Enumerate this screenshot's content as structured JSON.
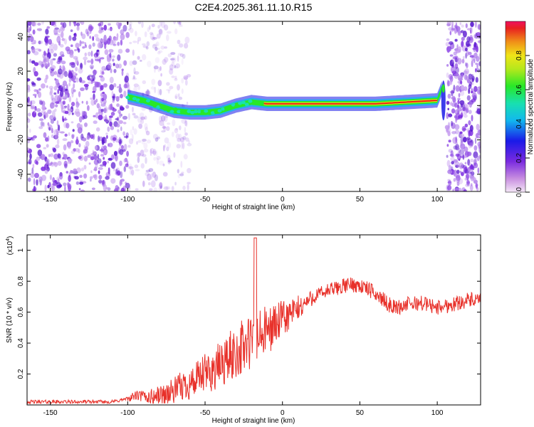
{
  "title": "C2E4.2025.361.11.10.R15",
  "chart_data": [
    {
      "type": "heatmap",
      "xlabel": "Height of straight line (km)",
      "ylabel": "Frequency (Hz)",
      "xlim": [
        -165,
        128
      ],
      "ylim": [
        -50,
        49
      ],
      "xticks": [
        -150,
        -100,
        -50,
        0,
        50,
        100
      ],
      "yticks": [
        -40,
        -20,
        0,
        20,
        40
      ],
      "colorbar": {
        "label": "Normalized spectral amplitude",
        "range": [
          0.0,
          1.0
        ],
        "ticks": [
          0.0,
          0.2,
          0.4,
          0.6,
          0.8
        ],
        "colormap": "rainbow (magenta-white to red)"
      },
      "ridge": {
        "x": [
          -100,
          -90,
          -80,
          -70,
          -60,
          -50,
          -40,
          -30,
          -20,
          -10,
          0,
          20,
          40,
          60,
          80,
          100,
          103
        ],
        "y": [
          5,
          3,
          0,
          -3,
          -4,
          -4,
          -3,
          0,
          2,
          1,
          1,
          1,
          1,
          1,
          2,
          3,
          10
        ]
      },
      "colors": {
        "noise": "#7a2ae0",
        "ridge_core": "#e8201a"
      }
    },
    {
      "type": "line",
      "xlabel": "Height of straight line (km)",
      "ylabel": "SNR (10 * v/v)",
      "y_multiplier": "(x10",
      "y_exponent": "4",
      "xlim": [
        -165,
        128
      ],
      "ylim": [
        0,
        1.1
      ],
      "xticks": [
        -150,
        -100,
        -50,
        0,
        50,
        100
      ],
      "yticks": [
        0.2,
        0.4,
        0.6,
        0.8,
        1.0
      ],
      "series": [
        {
          "color": "#e8312a",
          "x": [
            -165,
            -140,
            -110,
            -100,
            -95,
            -85,
            -75,
            -70,
            -65,
            -60,
            -55,
            -50,
            -45,
            -40,
            -35,
            -30,
            -25,
            -20,
            -18,
            -15,
            -10,
            -5,
            0,
            10,
            20,
            30,
            40,
            45,
            50,
            55,
            60,
            65,
            70,
            75,
            80,
            90,
            100,
            110,
            120,
            128
          ],
          "y": [
            0.02,
            0.02,
            0.02,
            0.04,
            0.06,
            0.05,
            0.07,
            0.09,
            0.12,
            0.14,
            0.16,
            0.2,
            0.22,
            0.26,
            0.3,
            0.34,
            0.38,
            0.4,
            0.4,
            0.44,
            0.48,
            0.52,
            0.55,
            0.62,
            0.7,
            0.74,
            0.77,
            0.78,
            0.77,
            0.75,
            0.72,
            0.68,
            0.64,
            0.63,
            0.65,
            0.66,
            0.63,
            0.65,
            0.68,
            0.67
          ]
        }
      ]
    }
  ]
}
